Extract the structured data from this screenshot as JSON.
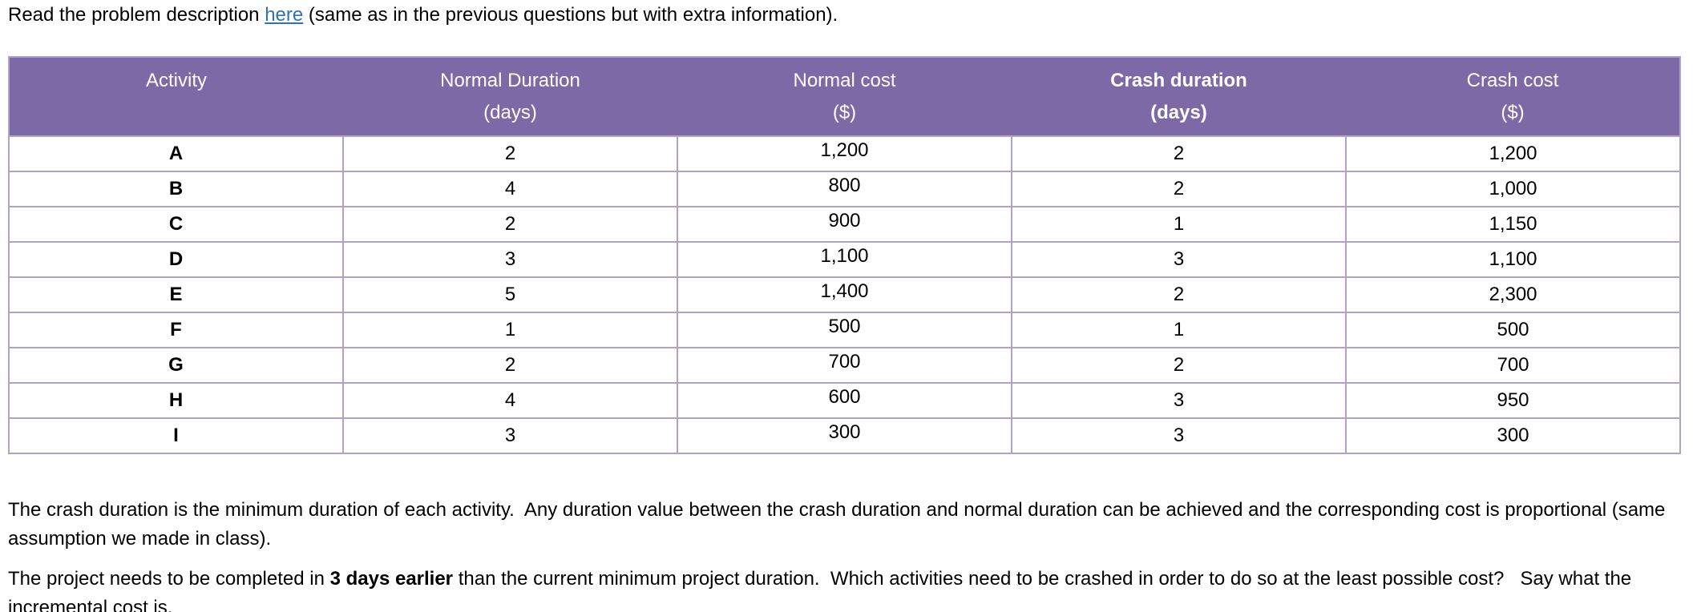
{
  "intro": {
    "prefix": "Read the problem description ",
    "link_text": "here",
    "suffix": " (same as in the previous questions but with extra information)."
  },
  "table": {
    "columns": [
      {
        "label": "Activity",
        "unit": "",
        "bold": false
      },
      {
        "label": "Normal Duration",
        "unit": "(days)",
        "bold": false
      },
      {
        "label": "Normal cost",
        "unit": "($)",
        "bold": false
      },
      {
        "label": "Crash duration",
        "unit": "(days)",
        "bold": true
      },
      {
        "label": "Crash cost",
        "unit": "($)",
        "bold": false
      }
    ],
    "rows": [
      {
        "activity": "A",
        "normal_duration": "2",
        "normal_cost": "1,200",
        "crash_duration": "2",
        "crash_cost": "1,200"
      },
      {
        "activity": "B",
        "normal_duration": "4",
        "normal_cost": "800",
        "crash_duration": "2",
        "crash_cost": "1,000"
      },
      {
        "activity": "C",
        "normal_duration": "2",
        "normal_cost": "900",
        "crash_duration": "1",
        "crash_cost": "1,150"
      },
      {
        "activity": "D",
        "normal_duration": "3",
        "normal_cost": "1,100",
        "crash_duration": "3",
        "crash_cost": "1,100"
      },
      {
        "activity": "E",
        "normal_duration": "5",
        "normal_cost": "1,400",
        "crash_duration": "2",
        "crash_cost": "2,300"
      },
      {
        "activity": "F",
        "normal_duration": "1",
        "normal_cost": "500",
        "crash_duration": "1",
        "crash_cost": "500"
      },
      {
        "activity": "G",
        "normal_duration": "2",
        "normal_cost": "700",
        "crash_duration": "2",
        "crash_cost": "700"
      },
      {
        "activity": "H",
        "normal_duration": "4",
        "normal_cost": "600",
        "crash_duration": "3",
        "crash_cost": "950"
      },
      {
        "activity": "I",
        "normal_duration": "3",
        "normal_cost": "300",
        "crash_duration": "3",
        "crash_cost": "300"
      }
    ]
  },
  "paragraphs": {
    "assumption": "The crash duration is the minimum duration of each activity.  Any duration value between the crash duration and normal duration can be achieved and the corresponding cost is proportional (same assumption we made in class).",
    "question_prefix": "The project needs to be completed in ",
    "question_bold": "3 days earlier",
    "question_suffix": " than the current minimum project duration.  Which activities need to be crashed in order to do so at the least possible cost?   Say what the incremental cost is."
  },
  "colors": {
    "header_purple": "#7C69A6",
    "table_border": "#B2A2C7",
    "link_blue": "#2E74B5"
  }
}
